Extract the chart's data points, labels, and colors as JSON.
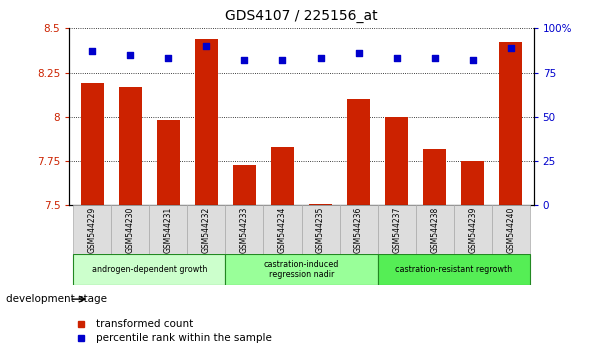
{
  "title": "GDS4107 / 225156_at",
  "samples": [
    "GSM544229",
    "GSM544230",
    "GSM544231",
    "GSM544232",
    "GSM544233",
    "GSM544234",
    "GSM544235",
    "GSM544236",
    "GSM544237",
    "GSM544238",
    "GSM544239",
    "GSM544240"
  ],
  "transformed_count": [
    8.19,
    8.17,
    7.98,
    8.44,
    7.73,
    7.83,
    7.51,
    8.1,
    8.0,
    7.82,
    7.75,
    8.42
  ],
  "percentile_rank": [
    87,
    85,
    83,
    90,
    82,
    82,
    83,
    86,
    83,
    83,
    82,
    89
  ],
  "ylim_left": [
    7.5,
    8.5
  ],
  "ylim_right": [
    0,
    100
  ],
  "yticks_left": [
    7.5,
    7.75,
    8.0,
    8.25,
    8.5
  ],
  "yticks_right": [
    0,
    25,
    50,
    75,
    100
  ],
  "ytick_labels_left": [
    "7.5",
    "7.75",
    "8",
    "8.25",
    "8.5"
  ],
  "ytick_labels_right": [
    "0",
    "25",
    "50",
    "75",
    "100%"
  ],
  "bar_color": "#cc2200",
  "scatter_color": "#0000cc",
  "bar_bottom": 7.5,
  "groups": [
    {
      "label": "androgen-dependent growth",
      "start": 0,
      "end": 3,
      "color": "#ccffcc"
    },
    {
      "label": "castration-induced\nregression nadir",
      "start": 4,
      "end": 7,
      "color": "#99ff99"
    },
    {
      "label": "castration-resistant regrowth",
      "start": 8,
      "end": 11,
      "color": "#55ee55"
    }
  ],
  "development_stage_label": "development stage",
  "legend_items": [
    {
      "color": "#cc2200",
      "label": "transformed count"
    },
    {
      "color": "#0000cc",
      "label": "percentile rank within the sample"
    }
  ],
  "left_tick_color": "#cc2200",
  "right_tick_color": "#0000cc"
}
